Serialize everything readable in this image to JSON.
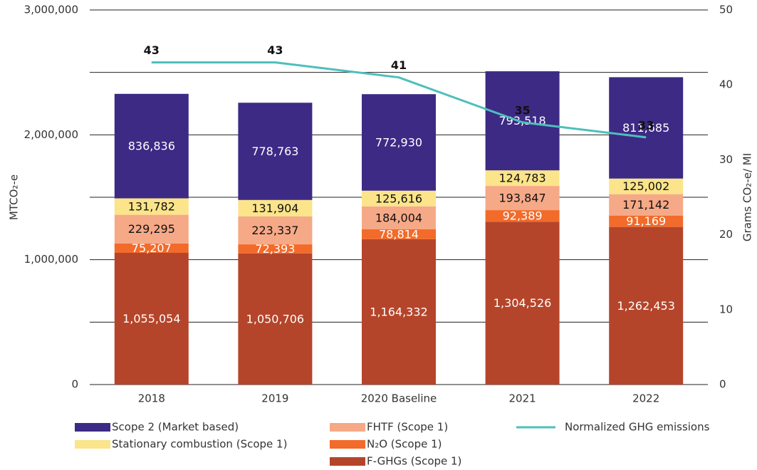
{
  "chart_data": {
    "type": "stacked-bar-line",
    "categories": [
      "2018",
      "2019",
      "2020 Baseline",
      "2021",
      "2022"
    ],
    "ylabel": "MTCO₂-e",
    "y2label": "Grams CO₂-e/ MI",
    "ylim": [
      0,
      3000000
    ],
    "yticks": [
      0,
      {
        "value": 1000000,
        "label": "1,000,000"
      },
      {
        "value": 2000000,
        "label": "2,000,000"
      },
      {
        "value": 3000000,
        "label": "3,000,000"
      }
    ],
    "y2lim": [
      0,
      50
    ],
    "y2ticks": [
      0,
      10,
      20,
      30,
      40,
      50
    ],
    "grid": true,
    "series": [
      {
        "name": "F-GHGs (Scope 1)",
        "color": "#b5452a",
        "values": [
          1055054,
          1050706,
          1164332,
          1304526,
          1262453
        ],
        "value_labels": [
          "1,055,054",
          "1,050,706",
          "1,164,332",
          "1,304,526",
          "1,262,453"
        ]
      },
      {
        "name": "N₂O (Scope 1)",
        "color": "#f26b2a",
        "values": [
          75207,
          72393,
          78814,
          92389,
          91169
        ],
        "value_labels": [
          "75,207",
          "72,393",
          "78,814",
          "92,389",
          "91,169"
        ]
      },
      {
        "name": "FHTF (Scope 1)",
        "color": "#f6a987",
        "values": [
          229295,
          223337,
          184004,
          193847,
          171142
        ],
        "value_labels": [
          "229,295",
          "223,337",
          "184,004",
          "193,847",
          "171,142"
        ]
      },
      {
        "name": "Stationary combustion (Scope 1)",
        "color": "#fbe48a",
        "values": [
          131782,
          131904,
          125616,
          124783,
          125002
        ],
        "value_labels": [
          "131,782",
          "131,904",
          "125,616",
          "124,783",
          "125,002"
        ]
      },
      {
        "name": "Scope 2 (Market based)",
        "color": "#3d2a85",
        "values": [
          836836,
          778763,
          772930,
          793518,
          811685
        ],
        "value_labels": [
          "836,836",
          "778,763",
          "772,930",
          "793,518",
          "811,685"
        ]
      },
      {
        "name": "Normalized GHG emissions",
        "color": "#4dbfbc",
        "axis": "y2",
        "type": "line",
        "values": [
          43,
          43,
          41,
          35,
          33
        ]
      }
    ]
  }
}
